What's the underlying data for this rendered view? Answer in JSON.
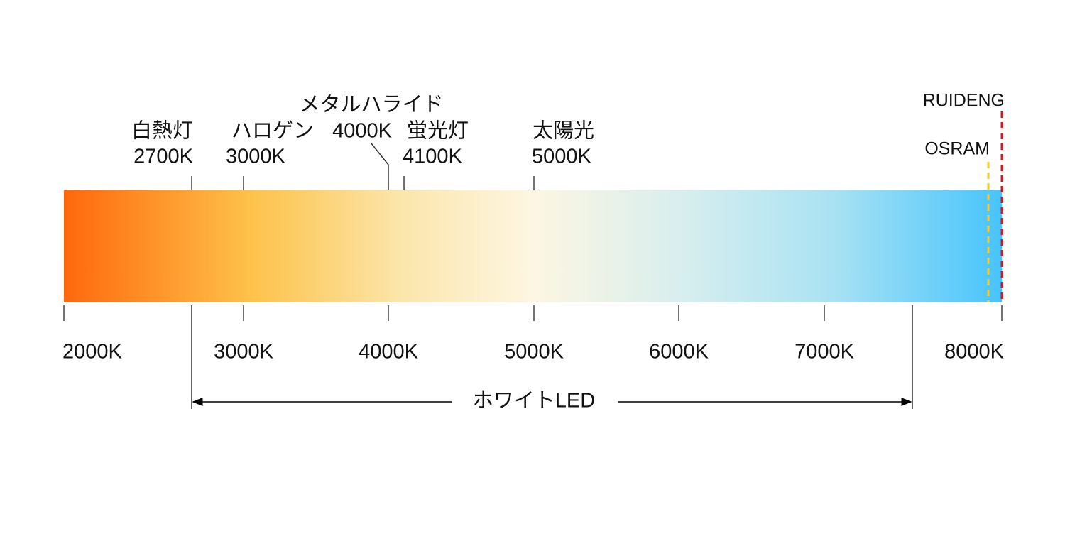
{
  "markers": [
    {
      "name": "白熱灯",
      "temperature": "2700K"
    },
    {
      "name": "ハロゲン",
      "temperature": "3000K"
    },
    {
      "name": "メタルハライド",
      "temperature": "4000K"
    },
    {
      "name": "蛍光灯",
      "temperature": "4100K"
    },
    {
      "name": "太陽光",
      "temperature": "5000K"
    }
  ],
  "scale_labels": [
    "2000K",
    "3000K",
    "4000K",
    "5000K",
    "6000K",
    "7000K",
    "8000K"
  ],
  "brands": [
    "OSRAM",
    "RUIDENG"
  ],
  "range_label": "ホワイトLED"
}
